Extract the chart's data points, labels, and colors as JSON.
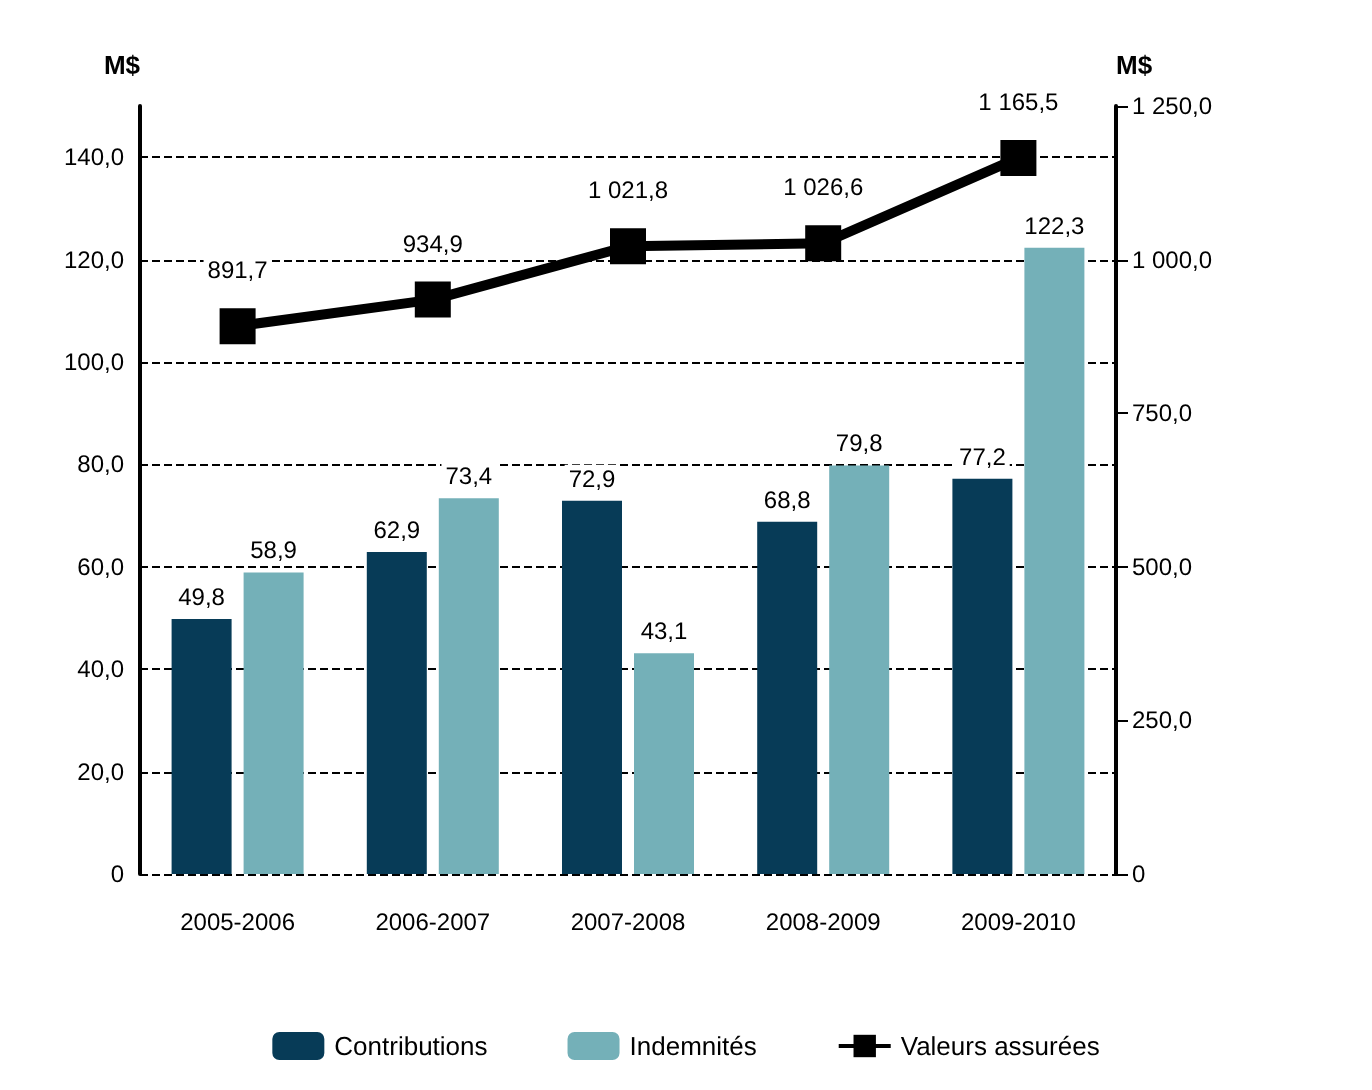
{
  "chart_data": {
    "type": "bar",
    "ylabel": "M$",
    "y2label": "M$",
    "categories": [
      "2005-2006",
      "2006-2007",
      "2007-2008",
      "2008-2009",
      "2009-2010"
    ],
    "series": [
      {
        "name": "Contributions",
        "color": "#073b57",
        "values": [
          49.8,
          62.9,
          72.9,
          68.8,
          77.2
        ],
        "value_labels": [
          "49,8",
          "62,9",
          "72,9",
          "68,8",
          "77,2"
        ]
      },
      {
        "name": "Indemnités",
        "color": "#74b0b8",
        "values": [
          58.9,
          73.4,
          43.1,
          79.8,
          122.3
        ],
        "value_labels": [
          "58,9",
          "73,4",
          "43,1",
          "79,8",
          "122,3"
        ]
      },
      {
        "name": "Valeurs assurées",
        "type": "line",
        "axis": "y2",
        "color": "#000000",
        "marker": "square",
        "line_style": "solid",
        "values": [
          891.7,
          934.9,
          1021.8,
          1026.6,
          1165.5
        ],
        "value_labels": [
          "891,7",
          "934,9",
          "1 021,8",
          "1 026,6",
          "1 165,5"
        ]
      }
    ],
    "ylim": [
      0,
      150
    ],
    "yticks": [
      0,
      {
        "value": 20,
        "label": "20,0"
      },
      {
        "value": 40,
        "label": "40,0"
      },
      {
        "value": 60,
        "label": "60,0"
      },
      {
        "value": 80,
        "label": "80,0"
      },
      {
        "value": 100,
        "label": "100,0"
      },
      {
        "value": 120,
        "label": "120,0"
      },
      {
        "value": 140,
        "label": "140,0"
      }
    ],
    "y2lim": [
      0,
      1250
    ],
    "y2ticks": [
      0,
      {
        "value": 250,
        "label": "250,0"
      },
      {
        "value": 500,
        "label": "500,0"
      },
      {
        "value": 750,
        "label": "750,0"
      },
      {
        "value": 1000,
        "label": "1 000,0"
      },
      {
        "value": 1250,
        "label": "1 250,0"
      }
    ],
    "grid": "y",
    "legend": "bottom"
  }
}
